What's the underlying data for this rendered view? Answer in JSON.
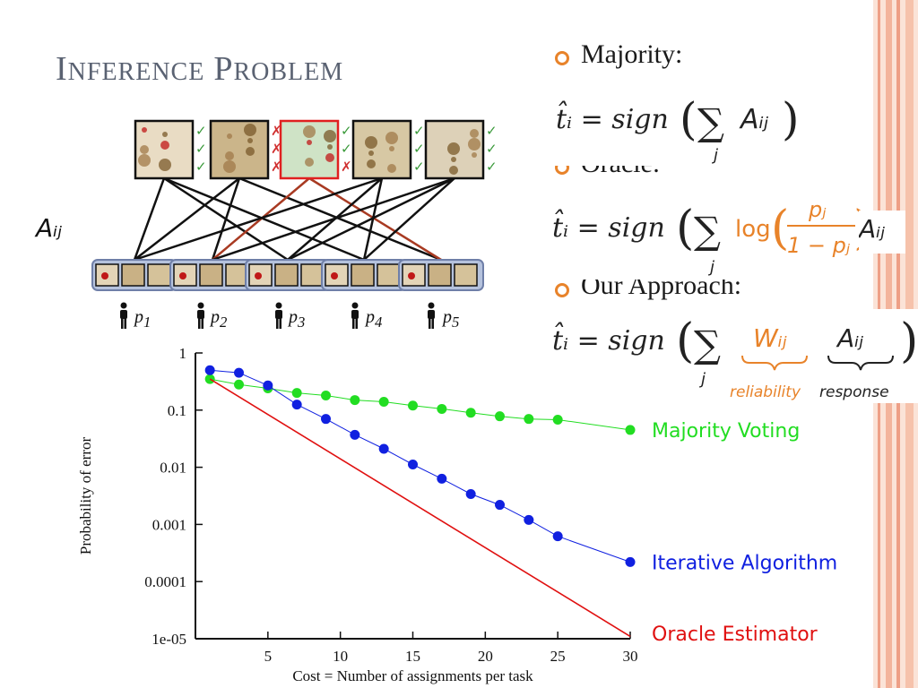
{
  "slide": {
    "title_first_cap": "I",
    "title_first_rest": "nference",
    "title_second_cap": "P",
    "title_second_rest": "roblem",
    "accent_color": "#e8832a",
    "stripe_colors": [
      "#f6c2ab",
      "#ee9f86"
    ]
  },
  "methods": [
    {
      "label": "Majority:"
    },
    {
      "label": "Oracle:"
    },
    {
      "label": "Our Approach:"
    }
  ],
  "formulas": {
    "majority": {
      "lhs": "t̂ᵢ = sign",
      "sum_index": "j",
      "term": "Aᵢⱼ"
    },
    "oracle": {
      "lhs": "t̂ᵢ = sign",
      "sum_index": "j",
      "log": "log",
      "num": "pⱼ",
      "den": "1 − pⱼ",
      "term": "Aᵢⱼ"
    },
    "ours": {
      "lhs": "t̂ᵢ = sign",
      "sum_index": "j",
      "weight": "Wᵢⱼ",
      "weight_caption": "reliability",
      "term": "Aᵢⱼ",
      "term_caption": "response"
    }
  },
  "diagram": {
    "matrix_label": "Aᵢⱼ",
    "workers": [
      {
        "name": "p",
        "sub": "1"
      },
      {
        "name": "p",
        "sub": "2"
      },
      {
        "name": "p",
        "sub": "3"
      },
      {
        "name": "p",
        "sub": "4"
      },
      {
        "name": "p",
        "sub": "5"
      }
    ],
    "task_marks": [
      [
        "✓",
        "✓",
        "✓"
      ],
      [
        "✗",
        "✗",
        "✗"
      ],
      [
        "✓",
        "✓",
        "✗"
      ],
      [
        "✓",
        "✓",
        "✓"
      ],
      [
        "✓",
        "✓",
        "✓"
      ]
    ],
    "highlighted_task": 2,
    "check_color": "#3a9a3a",
    "cross_color": "#d03030",
    "edge_color": "#111111",
    "edge_highlight_color": "#a83a22"
  },
  "chart_data": {
    "type": "line",
    "title": "",
    "xlabel": "Cost = Number of assignments per task",
    "ylabel": "Probability of error",
    "xlim": [
      0,
      30
    ],
    "ylim": [
      1e-05,
      1
    ],
    "yscale": "log",
    "xticks": [
      5,
      10,
      15,
      20,
      25,
      30
    ],
    "yticks": [
      {
        "v": 1,
        "label": "1"
      },
      {
        "v": 0.1,
        "label": "0.1"
      },
      {
        "v": 0.01,
        "label": "0.01"
      },
      {
        "v": 0.001,
        "label": "0.001"
      },
      {
        "v": 0.0001,
        "label": "0.0001"
      },
      {
        "v": 1e-05,
        "label": "1e-05"
      }
    ],
    "series": [
      {
        "name": "Majority Voting",
        "color": "#22dd22",
        "markers": true,
        "points": [
          [
            1,
            0.35
          ],
          [
            3,
            0.28
          ],
          [
            5,
            0.24
          ],
          [
            7,
            0.2
          ],
          [
            9,
            0.18
          ],
          [
            11,
            0.15
          ],
          [
            13,
            0.14
          ],
          [
            15,
            0.12
          ],
          [
            17,
            0.105
          ],
          [
            19,
            0.09
          ],
          [
            21,
            0.078
          ],
          [
            23,
            0.07
          ],
          [
            25,
            0.068
          ],
          [
            30,
            0.045
          ]
        ]
      },
      {
        "name": "Iterative Algorithm",
        "color": "#1020e0",
        "markers": true,
        "points": [
          [
            1,
            0.5
          ],
          [
            3,
            0.45
          ],
          [
            5,
            0.27
          ],
          [
            7,
            0.125
          ],
          [
            9,
            0.07
          ],
          [
            11,
            0.037
          ],
          [
            13,
            0.021
          ],
          [
            15,
            0.0112
          ],
          [
            17,
            0.0063
          ],
          [
            19,
            0.0034
          ],
          [
            21,
            0.0022
          ],
          [
            23,
            0.0012
          ],
          [
            25,
            0.00062
          ],
          [
            30,
            0.00022
          ]
        ]
      },
      {
        "name": "Oracle Estimator",
        "color": "#e01010",
        "markers": false,
        "points": [
          [
            1,
            0.35
          ],
          [
            30,
            1.1e-05
          ]
        ]
      }
    ]
  }
}
